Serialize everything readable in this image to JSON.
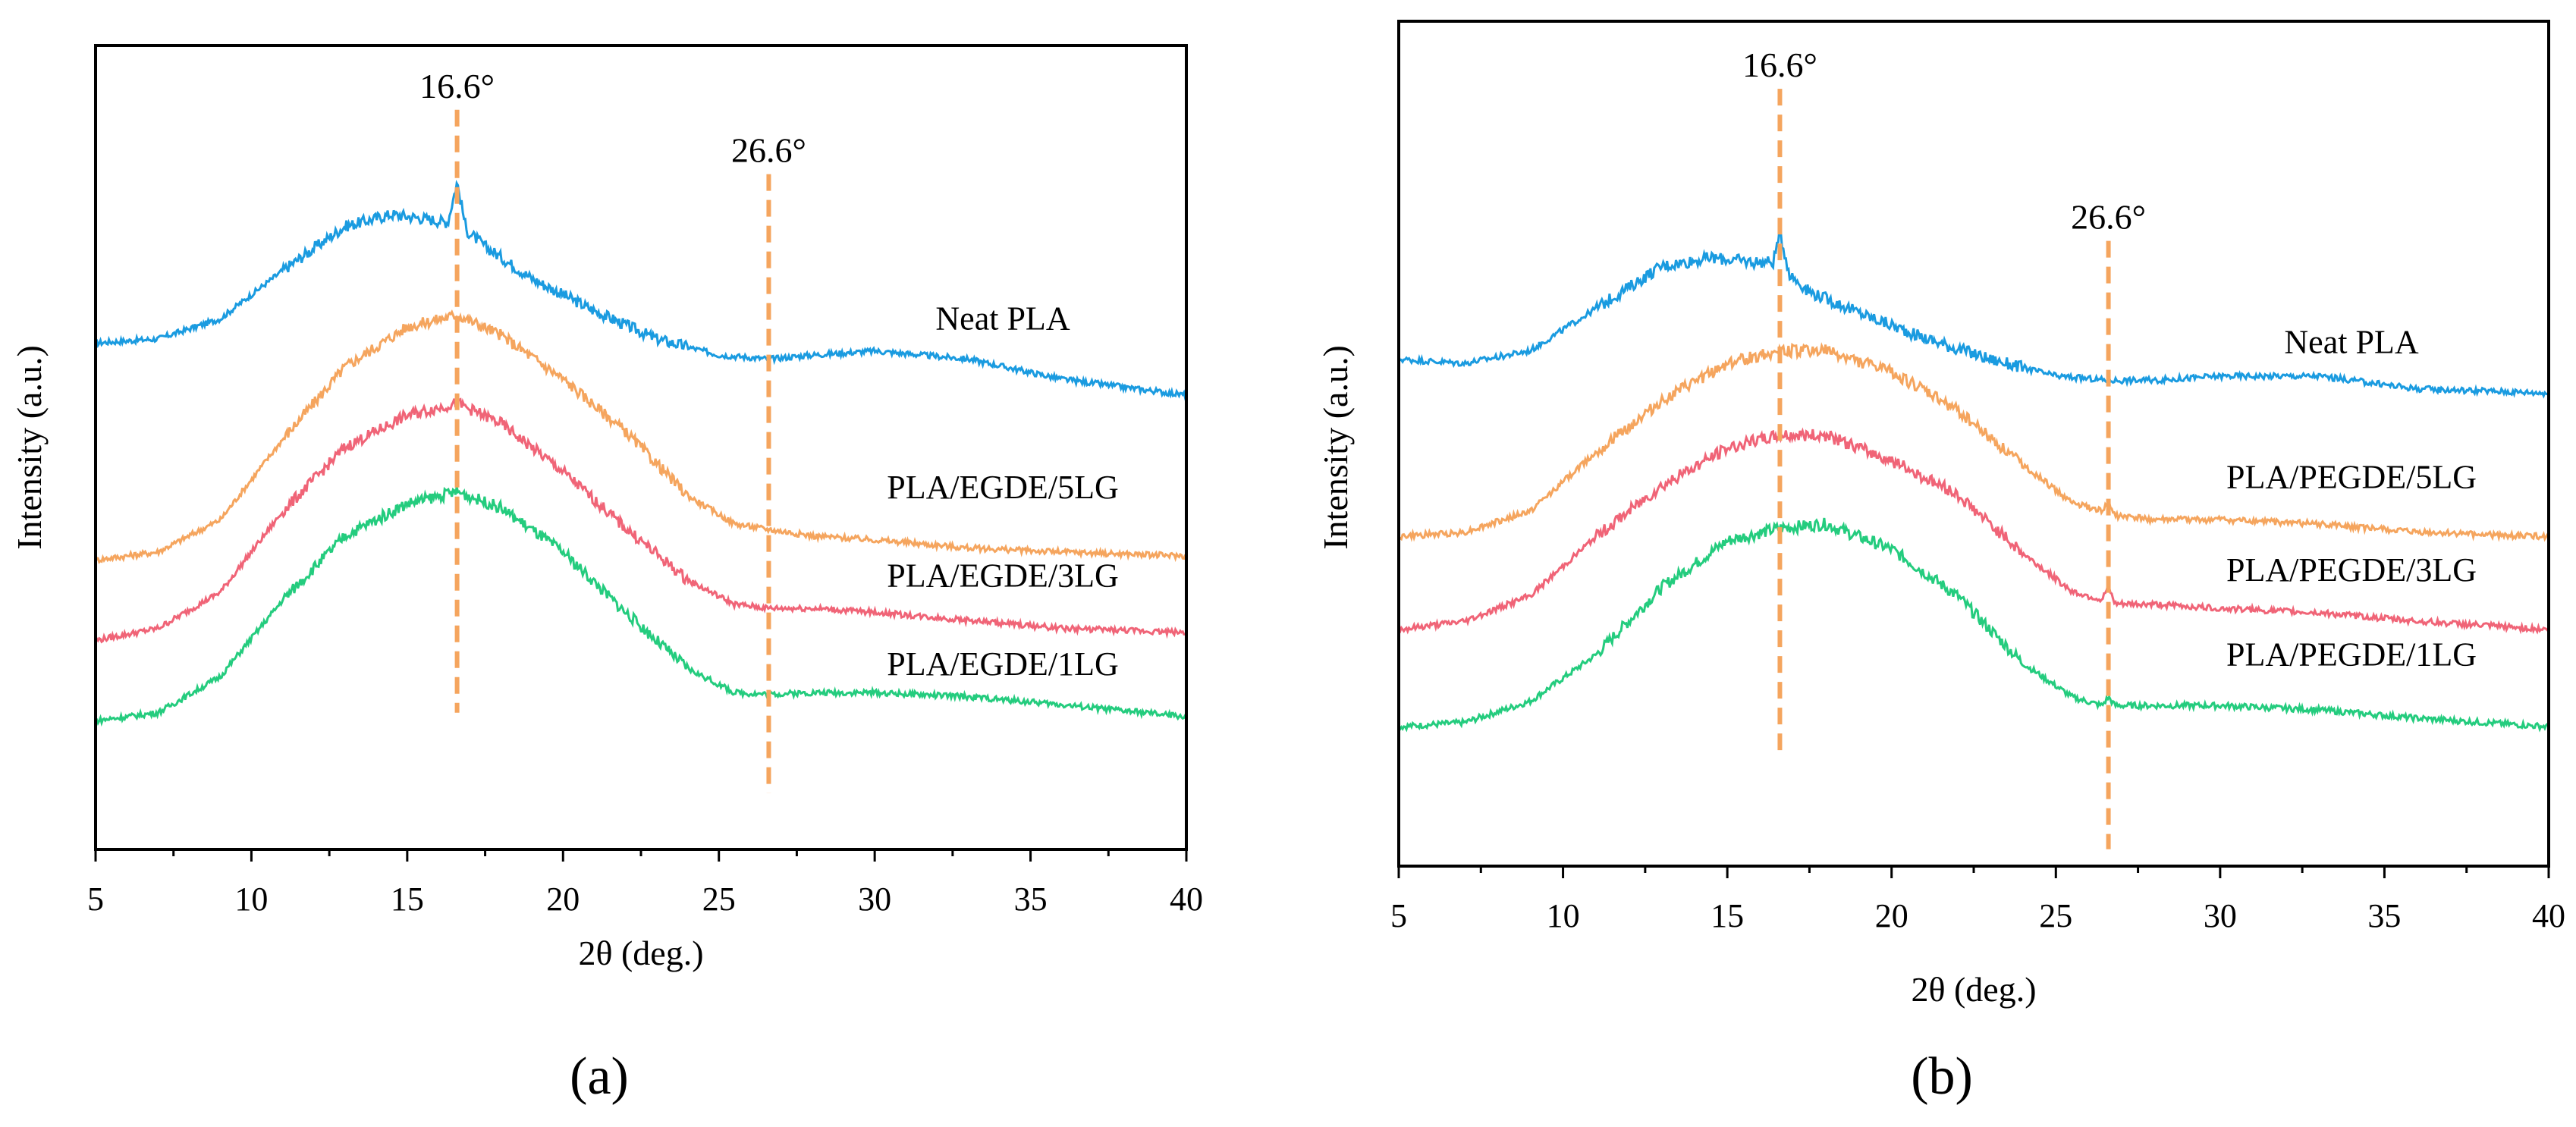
{
  "colors": {
    "neat": "#1a9be0",
    "lg5": "#f5a55e",
    "lg3": "#f06477",
    "lg1": "#24cc7e",
    "marker": "#f5a55e",
    "axis": "#000000"
  },
  "chart_data": [
    {
      "type": "line",
      "panel_label": "(a)",
      "xlabel": "2θ (deg.)",
      "ylabel": "Intensity (a.u.)",
      "xlim": [
        5,
        40
      ],
      "ylim": [
        0,
        100
      ],
      "yticks_shown": false,
      "xticks": [
        "5",
        "10",
        "15",
        "20",
        "25",
        "30",
        "35",
        "40"
      ],
      "markers": [
        {
          "x": 16.6,
          "label": "16.6°",
          "y_from": 17,
          "y_to": 92
        },
        {
          "x": 26.6,
          "label": "26.6°",
          "y_from": 7,
          "y_to": 84
        }
      ],
      "series": [
        {
          "name": "Neat PLA",
          "label_y": 66,
          "color_key": "neat",
          "x": [
            5,
            7,
            9,
            11,
            13,
            14.5,
            15.5,
            16.3,
            16.6,
            16.9,
            17.5,
            19,
            21,
            23,
            25,
            26.6,
            28,
            30,
            33,
            36,
            40
          ],
          "y": [
            63,
            63.5,
            66,
            72,
            77.5,
            79,
            78.5,
            78,
            83,
            77,
            75,
            71,
            67,
            63.5,
            61.5,
            61,
            61.5,
            62,
            61,
            58.5,
            56.5
          ]
        },
        {
          "name": "PLA/EGDE/5LG",
          "label_y": 45,
          "color_key": "lg5",
          "x": [
            5,
            7,
            9,
            11,
            13,
            15,
            16.6,
            18,
            20,
            22,
            24,
            25.5,
            26.6,
            28,
            30,
            33,
            36,
            40
          ],
          "y": [
            36,
            37,
            41,
            51,
            60,
            65,
            66.5,
            64,
            58.5,
            52,
            44,
            40.5,
            39.8,
            39,
            38.5,
            37.5,
            37,
            36.5
          ]
        },
        {
          "name": "PLA/EGDE/3LG",
          "label_y": 34,
          "color_key": "lg3",
          "x": [
            5,
            7,
            9,
            11,
            13,
            15,
            16.6,
            18,
            20,
            22,
            24,
            25.5,
            26.6,
            28,
            30,
            33,
            36,
            40
          ],
          "y": [
            26,
            27.5,
            32,
            42,
            50,
            54,
            55.5,
            53,
            47,
            40,
            33.5,
            30.5,
            30,
            30,
            29.5,
            28.5,
            27.5,
            27
          ]
        },
        {
          "name": "PLA/EGDE/1LG",
          "label_y": 23,
          "color_key": "lg1",
          "x": [
            5,
            7,
            9,
            11,
            13,
            15,
            16.6,
            18,
            20,
            22,
            24,
            25.5,
            26.6,
            28,
            30,
            33,
            36,
            40
          ],
          "y": [
            16,
            17,
            21.5,
            31,
            39,
            43,
            44.5,
            42.5,
            37,
            29.5,
            22.5,
            19.5,
            19.3,
            19.5,
            19.5,
            19,
            18,
            16.5
          ]
        }
      ]
    },
    {
      "type": "line",
      "panel_label": "(b)",
      "xlabel": "2θ (deg.)",
      "ylabel": "Intensity (a.u.)",
      "xlim": [
        5,
        40
      ],
      "ylim": [
        0,
        100
      ],
      "yticks_shown": false,
      "xticks": [
        "5",
        "10",
        "15",
        "20",
        "25",
        "30",
        "35",
        "40"
      ],
      "markers": [
        {
          "x": 16.6,
          "label": "16.6°",
          "y_from": 13,
          "y_to": 92
        },
        {
          "x": 26.6,
          "label": "26.6°",
          "y_from": 2,
          "y_to": 74
        }
      ],
      "series": [
        {
          "name": "Neat PLA",
          "label_y": 62,
          "color_key": "neat",
          "x": [
            5,
            7,
            9,
            11,
            13,
            14.5,
            15.8,
            16.4,
            16.6,
            16.9,
            17.5,
            19,
            21,
            23,
            25,
            26.6,
            28,
            30,
            33,
            36,
            40
          ],
          "y": [
            60,
            59.5,
            61,
            66,
            71,
            72,
            71.5,
            71.5,
            75,
            70,
            68,
            65.5,
            62.5,
            60,
            58,
            57.5,
            57.5,
            58,
            58,
            56.5,
            56
          ]
        },
        {
          "name": "PLA/PEGDE/5LG",
          "label_y": 46,
          "color_key": "lg5",
          "x": [
            5,
            7,
            9,
            11,
            13,
            15,
            16.6,
            18,
            20,
            22,
            24,
            25.5,
            26.4,
            26.6,
            26.8,
            28,
            30,
            33,
            36,
            40
          ],
          "y": [
            39,
            39.5,
            42,
            49,
            55,
            59.5,
            61,
            61,
            58.5,
            54,
            47.5,
            43,
            42,
            43,
            41.5,
            41,
            41,
            40.5,
            39.5,
            39
          ]
        },
        {
          "name": "PLA/PEGDE/3LG",
          "label_y": 35,
          "color_key": "lg3",
          "x": [
            5,
            7,
            9,
            11,
            13,
            15,
            16.6,
            18,
            20,
            22,
            24,
            25.5,
            26.4,
            26.6,
            26.8,
            28,
            30,
            33,
            36,
            40
          ],
          "y": [
            28,
            29,
            32,
            39,
            45,
            49.5,
            51,
            51,
            48,
            44,
            37,
            32.5,
            31.5,
            33,
            31,
            31,
            30.5,
            30,
            29,
            28
          ]
        },
        {
          "name": "PLA/PEGDE/1LG",
          "label_y": 25,
          "color_key": "lg1",
          "x": [
            5,
            7,
            9,
            11,
            13,
            15,
            16.6,
            18,
            20,
            22,
            24,
            25.5,
            26.4,
            26.6,
            26.8,
            28,
            30,
            33,
            36,
            40
          ],
          "y": [
            16.5,
            17,
            19.5,
            25,
            33,
            38.5,
            40,
            40.5,
            37.5,
            32,
            24,
            20,
            19,
            20,
            19,
            19,
            19,
            18.5,
            17.5,
            16.5
          ]
        }
      ]
    }
  ]
}
